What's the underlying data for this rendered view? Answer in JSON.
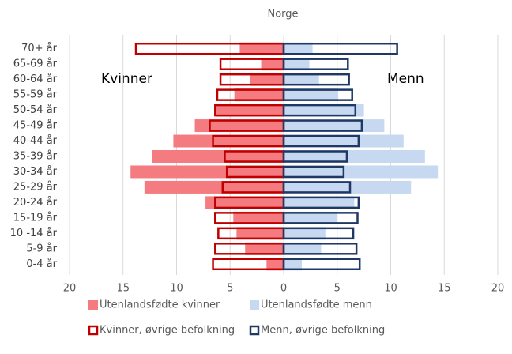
{
  "chart_data": {
    "type": "pyramid",
    "title": "Norge",
    "annotations": [
      "Kvinner",
      "Menn"
    ],
    "categories": [
      "70+ år",
      "65-69 år",
      "60-64 år",
      "55-59 år",
      "50-54 år",
      "45-49 år",
      "40-44 år",
      "35-39 år",
      "30-34 år",
      "25-29 år",
      "20-24 år",
      "15-19 år",
      "10 -14 år",
      "5-9 år",
      "0-4 år"
    ],
    "series": [
      {
        "name": "Utenlandsfødte kvinner",
        "color": "#f47c80",
        "outline": false,
        "values": [
          -4.1,
          -2.1,
          -3.1,
          -4.6,
          -6.3,
          -8.3,
          -10.3,
          -12.3,
          -14.3,
          -13.0,
          -7.3,
          -4.7,
          -4.4,
          -3.6,
          -1.6
        ]
      },
      {
        "name": "Utenlandsfødte menn",
        "color": "#c6d9f1",
        "outline": false,
        "values": [
          2.7,
          2.4,
          3.3,
          5.1,
          7.5,
          9.4,
          11.2,
          13.2,
          14.4,
          11.9,
          6.6,
          5.0,
          3.9,
          3.5,
          1.7
        ]
      },
      {
        "name": "Kvinner, øvrige befolkning",
        "color": "#c00000",
        "outline": true,
        "values": [
          -13.8,
          -5.9,
          -5.9,
          -6.2,
          -6.4,
          -6.9,
          -6.6,
          -5.5,
          -5.3,
          -5.7,
          -6.4,
          -6.4,
          -6.1,
          -6.4,
          -6.6
        ]
      },
      {
        "name": "Menn, øvrige befolkning",
        "color": "#1f3864",
        "outline": true,
        "values": [
          10.6,
          6.0,
          6.1,
          6.4,
          6.7,
          7.3,
          7.0,
          5.9,
          5.6,
          6.2,
          7.0,
          6.9,
          6.5,
          6.8,
          7.1
        ]
      }
    ],
    "xlim": [
      -20,
      20
    ],
    "xticks": [
      {
        "value": -20,
        "label": "20"
      },
      {
        "value": -15,
        "label": "15"
      },
      {
        "value": -10,
        "label": "10"
      },
      {
        "value": -5,
        "label": "5"
      },
      0,
      5,
      10,
      15,
      20
    ],
    "grid": true,
    "grid_color": "#d9d9d9"
  }
}
